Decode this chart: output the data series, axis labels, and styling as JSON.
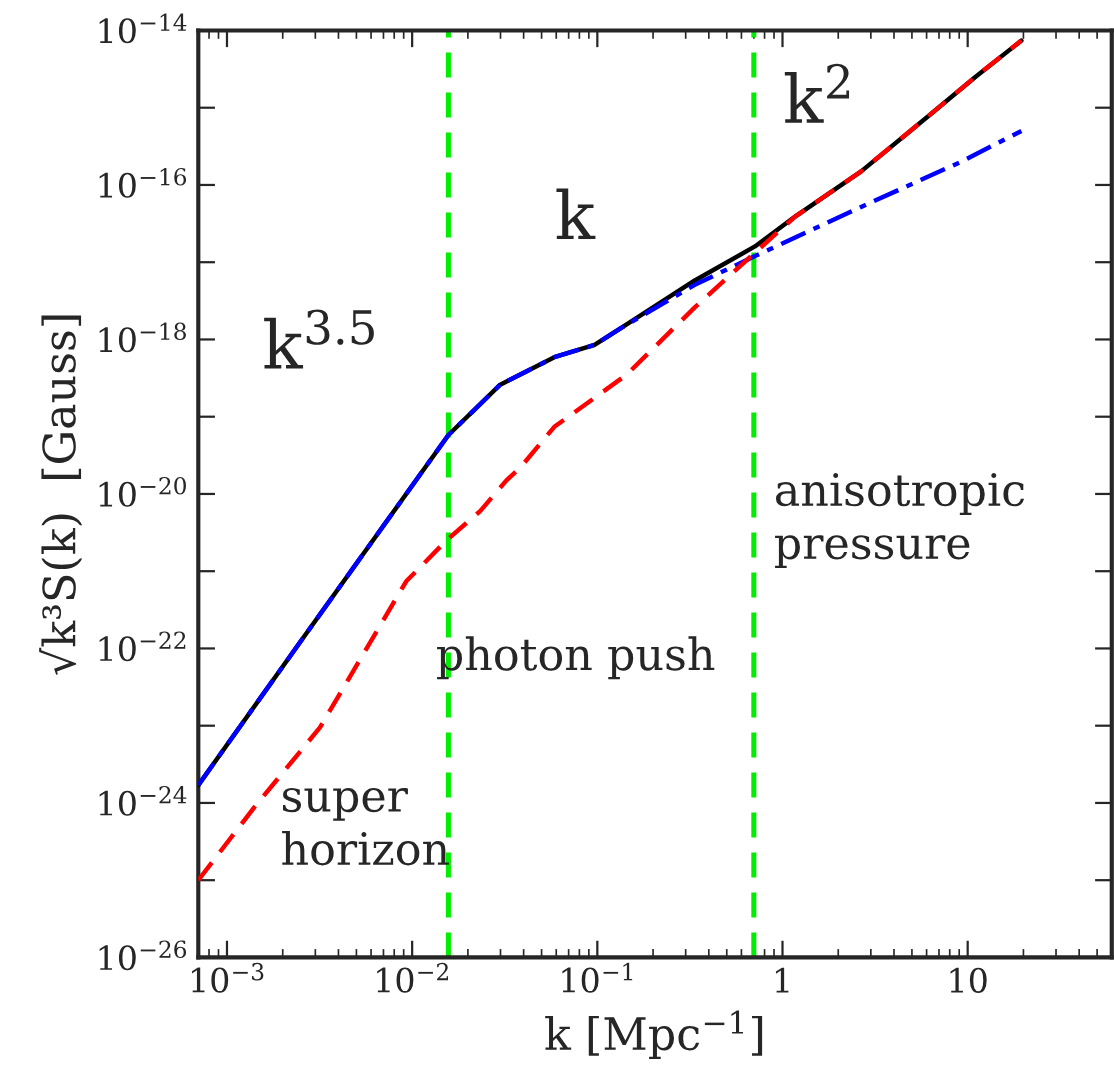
{
  "chart_data": {
    "type": "line",
    "xlabel": "k [Mpc$^{−1}$]",
    "ylabel": "√k³S(k)  [Gauss]",
    "log": "xy",
    "grid": false,
    "legend": false,
    "xlim": [
      0.0007,
      60
    ],
    "xticks": [
      {
        "value": 0.001,
        "label": "10$^{−3}$"
      },
      {
        "value": 0.01,
        "label": "10$^{−2}$"
      },
      {
        "value": 0.1,
        "label": "10$^{−1}$"
      },
      1,
      10
    ],
    "ylim": [
      1e-26,
      1e-14
    ],
    "yticks": [
      {
        "value": 1e-26,
        "label": "10$^{−26}$"
      },
      {
        "value": 1e-25,
        "label": null
      },
      {
        "value": 1e-24,
        "label": "10$^{−24}$"
      },
      {
        "value": 1e-23,
        "label": null
      },
      {
        "value": 1e-22,
        "label": "10$^{−22}$"
      },
      {
        "value": 1e-21,
        "label": null
      },
      {
        "value": 1e-20,
        "label": "10$^{−20}$"
      },
      {
        "value": 1e-19,
        "label": null
      },
      {
        "value": 1e-18,
        "label": "10$^{−18}$"
      },
      {
        "value": 1e-17,
        "label": null
      },
      {
        "value": 1e-16,
        "label": "10$^{−16}$"
      },
      {
        "value": 1e-15,
        "label": null
      },
      {
        "value": 1e-14,
        "label": "10$^{−14}$"
      }
    ],
    "series": [
      {
        "color": "#000000",
        "line_style": "solid",
        "x": [
          0.0007,
          0.00248,
          0.0157,
          0.0299,
          0.0586,
          0.0966,
          0.134,
          0.336,
          0.71,
          1.17,
          2.66,
          6.05,
          11.0,
          19.5
        ],
        "values": [
          1.7e-24,
          1.2e-22,
          5.8e-20,
          2.6e-19,
          5.9e-19,
          8.5e-19,
          1.4e-18,
          5.8e-18,
          1.6e-17,
          3.9e-17,
          1.5e-16,
          7.6e-16,
          2.5e-15,
          7.4e-15
        ]
      },
      {
        "color": "#0000ff",
        "line_style": "dashdot",
        "x": [
          0.0007,
          0.00248,
          0.0157,
          0.0299,
          0.0586,
          0.0966,
          0.134,
          0.336,
          0.71,
          2.66,
          9.23,
          19.5
        ],
        "values": [
          1.7e-24,
          1.2e-22,
          5.8e-20,
          2.6e-19,
          5.9e-19,
          8.5e-19,
          1.4e-18,
          5.1e-18,
          1.2e-17,
          5.2e-17,
          2e-16,
          5e-16
        ]
      },
      {
        "color": "#ff0000",
        "line_style": "dashed",
        "x": [
          0.0007,
          0.0014,
          0.00318,
          0.00929,
          0.0153,
          0.0233,
          0.0323,
          0.0384,
          0.0586,
          0.144,
          0.336,
          0.596,
          1.17,
          2.66,
          6.05,
          11.0,
          19.5
        ],
        "values": [
          1e-25,
          8.7e-25,
          9.5e-24,
          7.4e-22,
          2.5e-21,
          6e-21,
          1.5e-20,
          2.2e-20,
          7.4e-20,
          3.5e-19,
          2.6e-18,
          9.1e-18,
          3.9e-17,
          1.5e-16,
          7.6e-16,
          2.5e-15,
          7.4e-15
        ]
      }
    ],
    "ref_lines": [
      {
        "axis": "x",
        "value": 0.0157,
        "color": "#00ee00",
        "line_style": "dashed"
      },
      {
        "axis": "x",
        "value": 0.7,
        "color": "#00ee00",
        "line_style": "dashed"
      }
    ],
    "annotations": [
      "k$^{3.5}$",
      "k",
      "k$^{2}$",
      "super\nhorizon",
      "photon push",
      "anisotropic\npressure"
    ]
  }
}
